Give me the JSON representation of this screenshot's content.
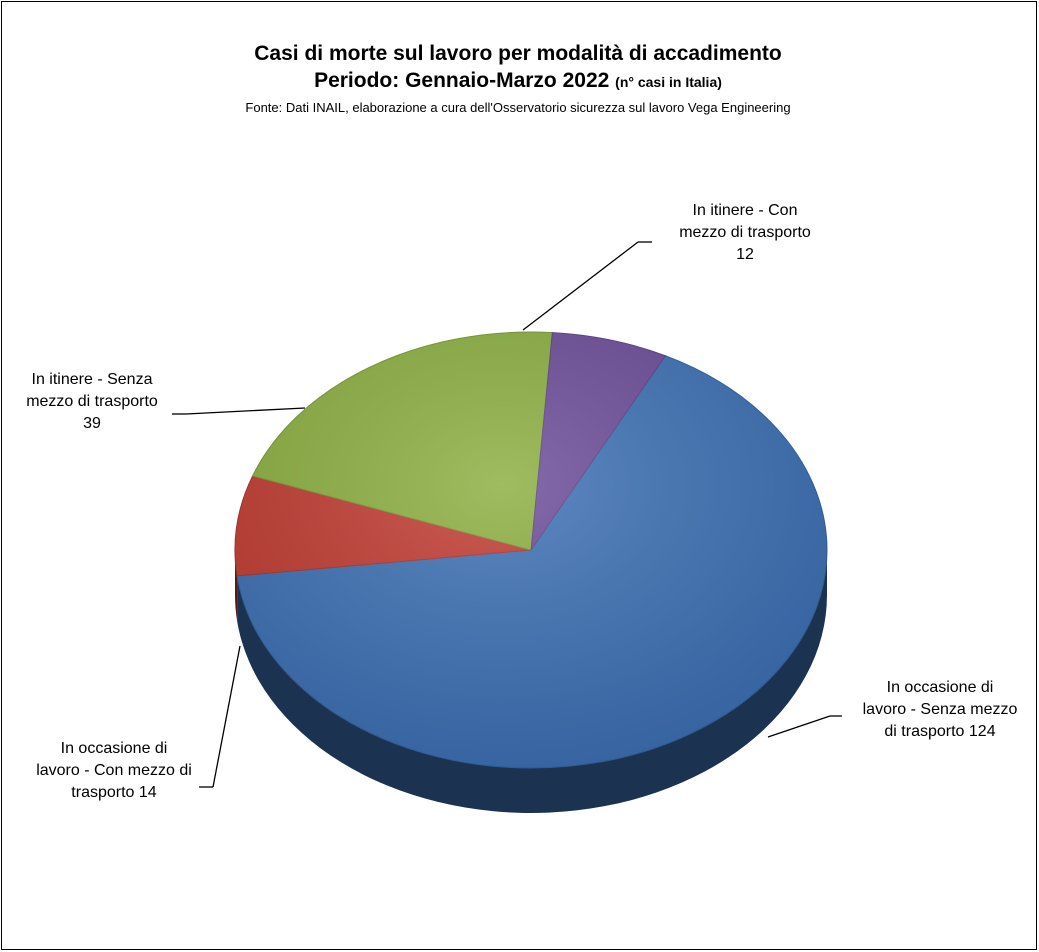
{
  "colors": {
    "blue": "#3b6fb4",
    "red": "#c0392f",
    "green": "#8aae3d",
    "purple": "#6a4a98"
  },
  "chart_data": {
    "type": "pie",
    "title": "Casi di morte sul lavoro per modalità di accadimento",
    "subtitle": "Periodo: Gennaio-Marzo 2022",
    "subtitle_note": "(n° casi in Italia)",
    "source": "Fonte: Dati INAIL, elaborazione a cura dell'Osservatorio sicurezza sul lavoro Vega Engineering",
    "slices": [
      {
        "label": "In occasione di\nlavoro - Senza mezzo\ndi trasporto 124",
        "value": 124,
        "color": "#3b6fb4"
      },
      {
        "label": "In occasione di\nlavoro - Con mezzo di\ntrasporto 14",
        "value": 14,
        "color": "#c0392f"
      },
      {
        "label": "In itinere - Senza\nmezzo di trasporto\n39",
        "value": 39,
        "color": "#8aae3d"
      },
      {
        "label": "In itinere -   Con\nmezzo di trasporto\n12",
        "value": 12,
        "color": "#6a4a98"
      }
    ]
  }
}
